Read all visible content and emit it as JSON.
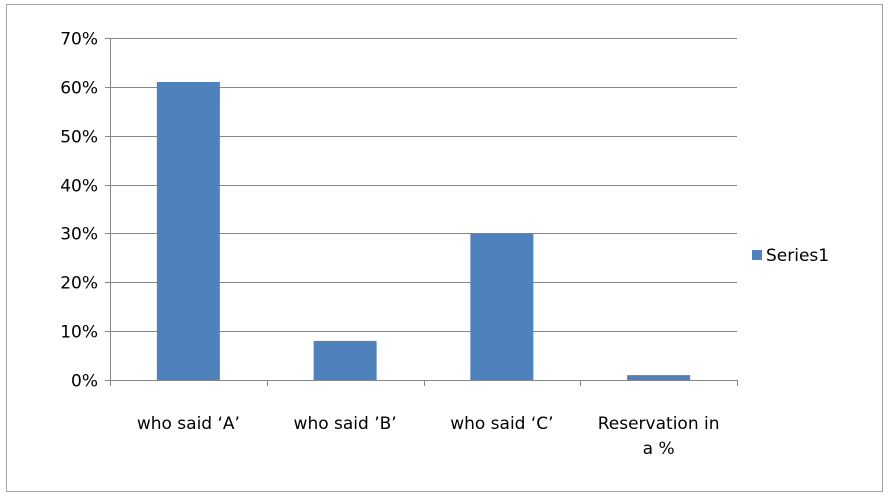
{
  "chart_data": {
    "type": "bar",
    "categories": [
      "who said ‘A’",
      "who said ’B’",
      "who said ‘C’",
      "Reservation in a %"
    ],
    "category_lines": [
      [
        "who said ‘A’"
      ],
      [
        "who said ’B’"
      ],
      [
        "who said ‘C’"
      ],
      [
        "Reservation in",
        "a %"
      ]
    ],
    "series": [
      {
        "name": "Series1",
        "values": [
          0.61,
          0.08,
          0.3,
          0.01
        ]
      }
    ],
    "ylim": [
      0,
      0.7
    ],
    "y_ticks": [
      0,
      0.1,
      0.2,
      0.3,
      0.4,
      0.5,
      0.6,
      0.7
    ],
    "y_tick_labels": [
      "0%",
      "10%",
      "20%",
      "30%",
      "40%",
      "50%",
      "60%",
      "70%"
    ],
    "title": "",
    "xlabel": "",
    "ylabel": "",
    "grid": true,
    "legend_position": "right",
    "colors": {
      "bar": "#4f81bd",
      "grid": "#878787",
      "axis": "#878787"
    }
  }
}
